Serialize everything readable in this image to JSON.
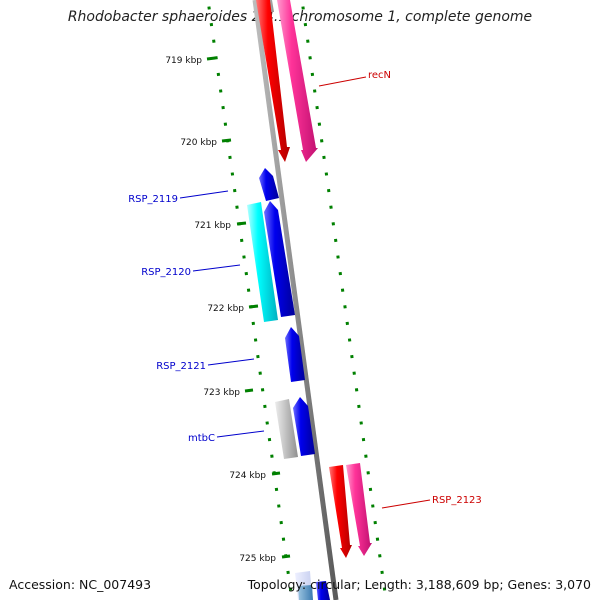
{
  "title": "Rhodobacter sphaeroides 2.4.1 chromosome 1, complete genome",
  "footer": {
    "accession": "Accession: NC_007493",
    "summary": "Topology: circular; Length: 3,188,609 bp; Genes: 3,070"
  },
  "ticks": [
    {
      "label": "719 kbp"
    },
    {
      "label": "720 kbp"
    },
    {
      "label": "721 kbp"
    },
    {
      "label": "722 kbp"
    },
    {
      "label": "723 kbp"
    },
    {
      "label": "724 kbp"
    },
    {
      "label": "725 kbp"
    }
  ],
  "gene_labels": [
    {
      "text": "recN",
      "color": "#cc0000"
    },
    {
      "text": "RSP_2119",
      "color": "#0000cc"
    },
    {
      "text": "RSP_2120",
      "color": "#0000cc"
    },
    {
      "text": "RSP_2121",
      "color": "#0000cc"
    },
    {
      "text": "mtbC",
      "color": "#0000cc"
    },
    {
      "text": "RSP_2123",
      "color": "#cc0000"
    }
  ],
  "colors": {
    "backbone": "#8c8c8c",
    "tick": "#008000",
    "cds_forward": "#ff0000",
    "cds_reverse": "#0000ee",
    "gene_forward": "#ff3399",
    "gene_reverse": "#00ffff",
    "other": "#c8c8c8"
  }
}
